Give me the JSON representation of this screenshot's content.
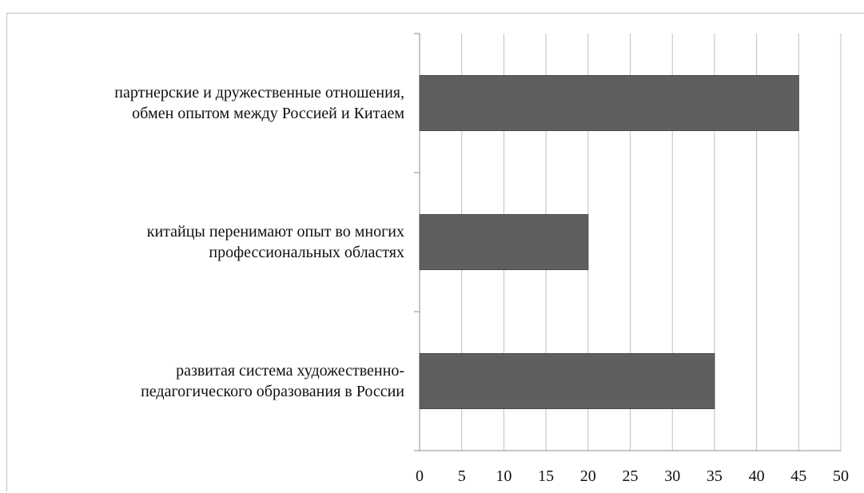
{
  "chart_data": {
    "type": "bar",
    "orientation": "horizontal",
    "categories": [
      "партнерские  и дружественные  отношения,\nобмен опытом между Россией и Китаем",
      "китайцы перенимают опыт во многих\nпрофессиональных областях",
      "развитая система художественно-\nпедагогического образования в России"
    ],
    "values": [
      45,
      20,
      35
    ],
    "xlim": [
      0,
      50
    ],
    "xticks": [
      "0",
      "5",
      "10",
      "15",
      "20",
      "25",
      "30",
      "35",
      "40",
      "45",
      "50"
    ],
    "grid": true,
    "legend": "none",
    "bar_color": "#5f5f5f",
    "grid_color": "#bfbfbf"
  }
}
